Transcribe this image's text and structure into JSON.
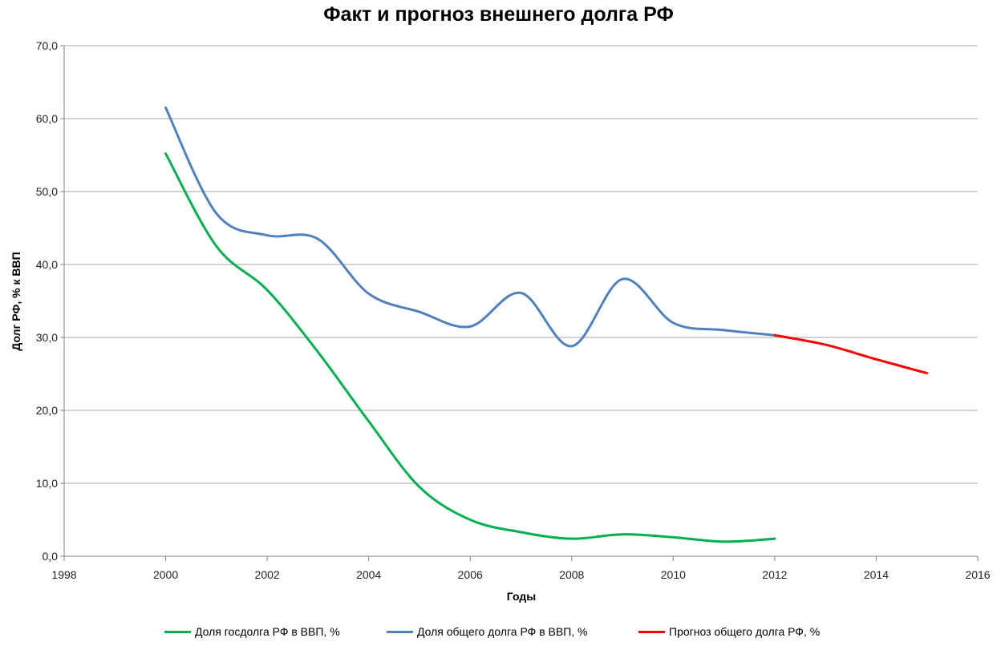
{
  "chart_data": {
    "type": "line",
    "title": "Факт и прогноз внешнего долга РФ",
    "xlabel": "Годы",
    "ylabel": "Долг РФ, % к ВВП",
    "xlim": [
      1998,
      2016
    ],
    "ylim": [
      0,
      70
    ],
    "x_ticks": [
      "1998",
      "2000",
      "2002",
      "2004",
      "2006",
      "2008",
      "2010",
      "2012",
      "2014",
      "2016"
    ],
    "y_ticks": [
      "0,0",
      "10,0",
      "20,0",
      "30,0",
      "40,0",
      "50,0",
      "60,0",
      "70,0"
    ],
    "grid": "horizontal",
    "legend_position": "bottom",
    "series": [
      {
        "name": "Доля госдолга РФ в ВВП, %",
        "color": "#00b050",
        "x": [
          2000,
          2001,
          2002,
          2003,
          2004,
          2005,
          2006,
          2007,
          2008,
          2009,
          2010,
          2011,
          2012
        ],
        "y": [
          55.2,
          42.5,
          36.5,
          28.0,
          18.5,
          9.5,
          5.0,
          3.3,
          2.4,
          3.0,
          2.6,
          2.0,
          2.4
        ]
      },
      {
        "name": "Доля общего долга РФ в ВВП, %",
        "color": "#4f81bd",
        "x": [
          2000,
          2001,
          2002,
          2003,
          2004,
          2005,
          2006,
          2007,
          2008,
          2009,
          2010,
          2011,
          2012
        ],
        "y": [
          61.5,
          47.0,
          44.0,
          43.5,
          36.0,
          33.5,
          31.5,
          36.1,
          28.8,
          38.0,
          32.0,
          31.0,
          30.3
        ]
      },
      {
        "name": "Прогноз общего долга РФ, %",
        "color": "#ff0000",
        "x": [
          2012,
          2013,
          2014,
          2015
        ],
        "y": [
          30.3,
          29.0,
          27.0,
          25.1
        ]
      }
    ]
  }
}
